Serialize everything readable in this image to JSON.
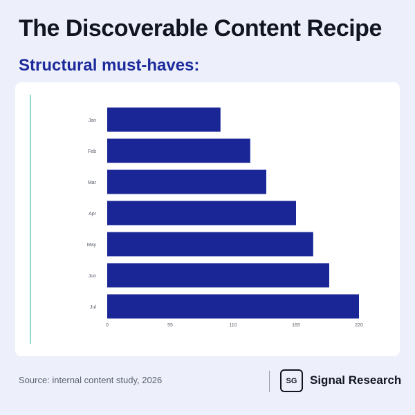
{
  "header": {
    "title": "The Discoverable Content Recipe",
    "subtitle": "Structural must-haves:"
  },
  "chart_data": {
    "type": "bar",
    "orientation": "horizontal",
    "categories": [
      "Jan",
      "Feb",
      "Mar",
      "Apr",
      "May",
      "Jun",
      "Jul"
    ],
    "values": [
      99,
      125,
      139,
      165,
      180,
      194,
      220
    ],
    "xlim": [
      0,
      220
    ],
    "xticks": [
      "0",
      "55",
      "110",
      "165",
      "220"
    ],
    "grid": false,
    "bar_color": "#1a2696"
  },
  "footer": {
    "source": "Source: internal content study, 2026",
    "brand_mark": "SG",
    "brand_name": "Signal Research"
  },
  "colors": {
    "background": "#edf0fa",
    "accent": "#8fdccd",
    "subtitle": "#1c2a9c"
  }
}
